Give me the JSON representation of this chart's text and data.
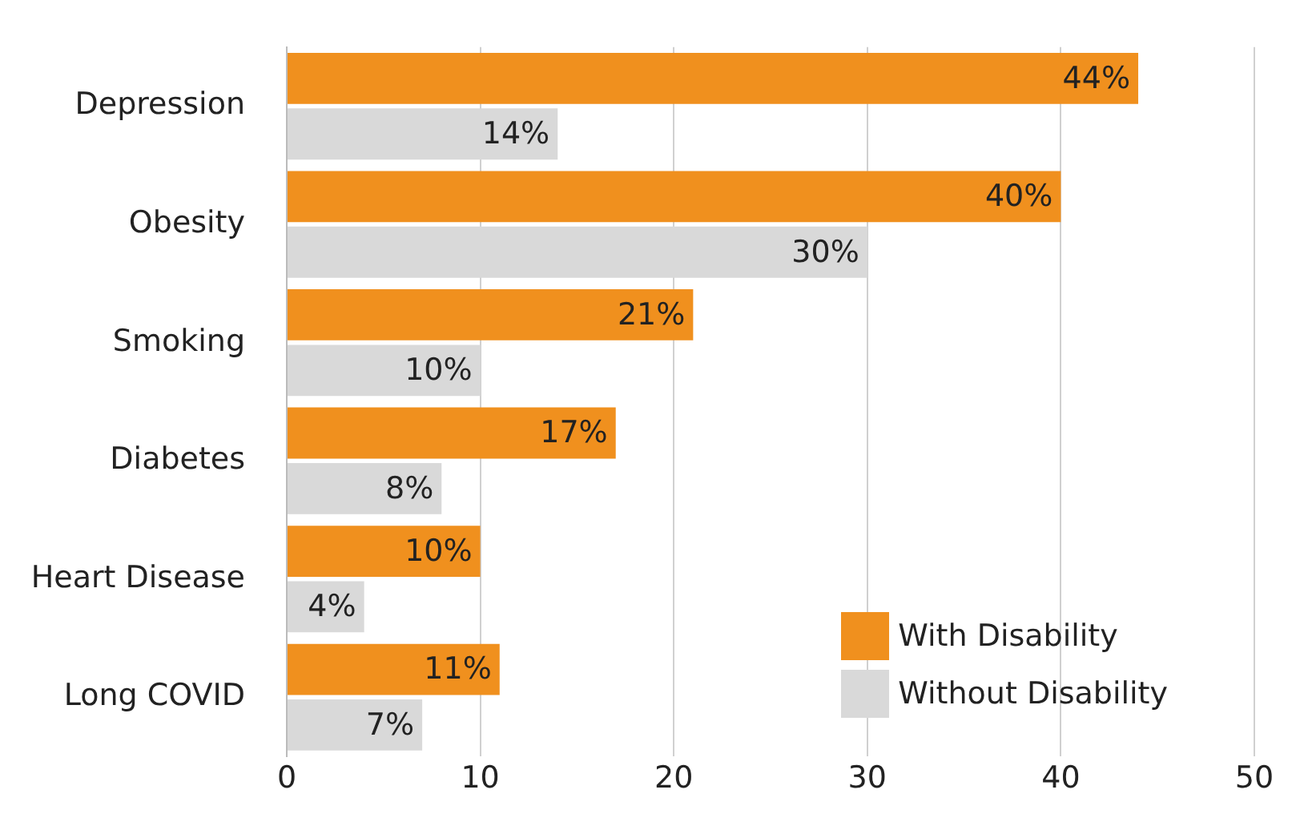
{
  "chart_data": {
    "type": "bar",
    "orientation": "horizontal",
    "categories": [
      "Depression",
      "Obesity",
      "Smoking",
      "Diabetes",
      "Heart Disease",
      "Long COVID"
    ],
    "series": [
      {
        "name": "With Disability",
        "color": "#f0901e",
        "values": [
          44,
          40,
          21,
          17,
          10,
          11
        ],
        "value_labels": [
          "44%",
          "40%",
          "21%",
          "17%",
          "10%",
          "11%"
        ]
      },
      {
        "name": "Without Disability",
        "color": "#d9d9d9",
        "values": [
          14,
          30,
          10,
          8,
          4,
          7
        ],
        "value_labels": [
          "14%",
          "30%",
          "10%",
          "8%",
          "4%",
          "7%"
        ]
      }
    ],
    "xlim": [
      0,
      50
    ],
    "xticks": [
      0,
      10,
      20,
      30,
      40,
      50
    ],
    "grid": "x",
    "legend": "bottom right"
  }
}
